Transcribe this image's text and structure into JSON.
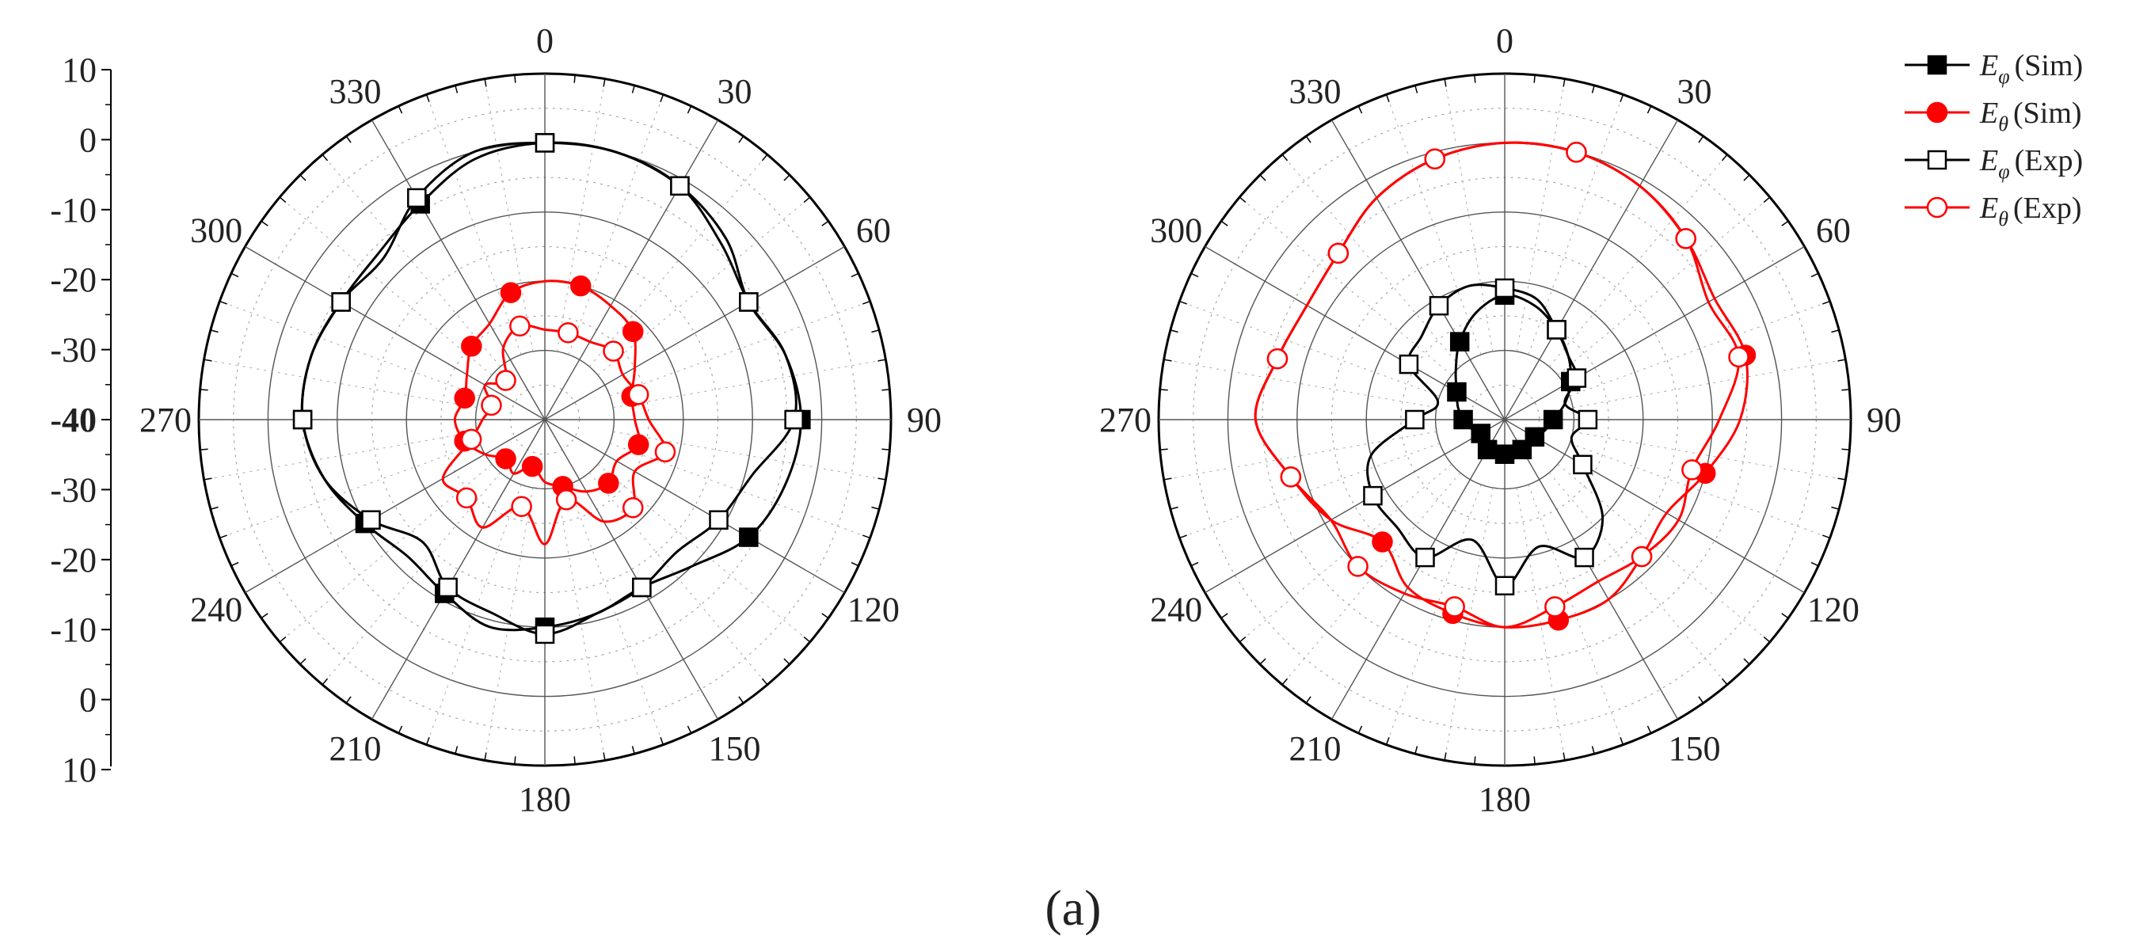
{
  "figure": {
    "panel_label": "(a)"
  },
  "chart_data": [
    {
      "type": "polar-line",
      "angle_labels": [
        "0",
        "30",
        "60",
        "90",
        "120",
        "150",
        "180",
        "210",
        "240",
        "270",
        "300",
        "330"
      ],
      "radial_tick_labels_upper": [
        "10",
        "0",
        "-10",
        "-20",
        "-30",
        "-40"
      ],
      "radial_tick_labels_lower": [
        "-30",
        "-20",
        "-10",
        "0",
        "10"
      ],
      "radial_range_db": [
        -40,
        10
      ],
      "show_radial_axis": true,
      "series": [
        {
          "name": "Eφ (Sim)",
          "color": "#000000",
          "marker": "filled-square",
          "theta": [
            0,
            15,
            30,
            45,
            60,
            75,
            90,
            105,
            120,
            135,
            150,
            165,
            180,
            195,
            210,
            225,
            240,
            255,
            270,
            285,
            300,
            315,
            330,
            345
          ],
          "r": [
            0,
            0,
            -1,
            -3,
            -6,
            -4,
            -3,
            -4,
            -6,
            -10,
            -12,
            -11,
            -10,
            -9,
            -11,
            -12,
            -10,
            -7,
            -5,
            -5,
            -6,
            -6,
            -4,
            -1
          ]
        },
        {
          "name": "Eθ (Sim)",
          "color": "#ff0000",
          "marker": "filled-circle",
          "theta": [
            0,
            15,
            30,
            45,
            60,
            75,
            90,
            105,
            120,
            135,
            150,
            165,
            180,
            195,
            210,
            225,
            240,
            255,
            270,
            285,
            300,
            315,
            330,
            345
          ],
          "r": [
            -20,
            -20,
            -21,
            -22,
            -25,
            -27,
            -27,
            -26,
            -28,
            -27,
            -28,
            -30,
            -31,
            -33,
            -31,
            -32,
            -30,
            -28,
            -27,
            -28,
            -27,
            -25,
            -24,
            -21
          ]
        },
        {
          "name": "Eφ (Exp)",
          "color": "#000000",
          "marker": "open-square",
          "theta": [
            0,
            15,
            30,
            45,
            60,
            75,
            90,
            105,
            120,
            135,
            150,
            165,
            180,
            195,
            210,
            225,
            240,
            255,
            270,
            285,
            300,
            315,
            330,
            345
          ],
          "r": [
            0,
            0,
            -1,
            -4,
            -6,
            -4,
            -4,
            -9,
            -11,
            -13,
            -12,
            -11,
            -9,
            -11,
            -12,
            -15,
            -11,
            -7,
            -5,
            -5,
            -6,
            -7,
            -3,
            0
          ]
        },
        {
          "name": "Eθ (Exp)",
          "color": "#ff0000",
          "marker": "open-circle",
          "theta": [
            0,
            15,
            30,
            45,
            60,
            75,
            90,
            105,
            120,
            135,
            150,
            165,
            180,
            195,
            210,
            225,
            240,
            255,
            270,
            285,
            300,
            315,
            330,
            345
          ],
          "r": [
            -27,
            -27,
            -27,
            -26,
            -27,
            -26,
            -25,
            -22,
            -25,
            -22,
            -23,
            -28,
            -22,
            -27,
            -22,
            -24,
            -23,
            -29,
            -31,
            -32,
            -30,
            -32,
            -28,
            -26
          ]
        }
      ]
    },
    {
      "type": "polar-line",
      "angle_labels": [
        "0",
        "30",
        "60",
        "90",
        "120",
        "150",
        "180",
        "210",
        "240",
        "270",
        "300",
        "330"
      ],
      "radial_tick_labels_upper": [],
      "radial_tick_labels_lower": [],
      "radial_range_db": [
        -40,
        10
      ],
      "show_radial_axis": false,
      "series": [
        {
          "name": "Eφ (Sim)",
          "color": "#000000",
          "marker": "filled-square",
          "theta": [
            0,
            15,
            30,
            45,
            60,
            75,
            90,
            105,
            120,
            135,
            150,
            165,
            180,
            195,
            210,
            225,
            240,
            255,
            270,
            285,
            300,
            315,
            330,
            345
          ],
          "r": [
            -22,
            -23,
            -25,
            -27,
            -29,
            -31,
            -33,
            -34,
            -35,
            -35,
            -35,
            -35,
            -35,
            -35,
            -35,
            -35,
            -36,
            -35,
            -34,
            -33,
            -32,
            -30,
            -27,
            -24
          ]
        },
        {
          "name": "Eθ (Sim)",
          "color": "#ff0000",
          "marker": "filled-circle",
          "theta": [
            0,
            15,
            30,
            45,
            60,
            75,
            90,
            105,
            120,
            135,
            150,
            165,
            180,
            195,
            210,
            225,
            240,
            255,
            270,
            285,
            300,
            315,
            330,
            345
          ],
          "r": [
            0,
            0,
            -1,
            -3,
            -5,
            -4,
            -6,
            -10,
            -13,
            -12,
            -10,
            -10,
            -10,
            -11,
            -12,
            -15,
            -11,
            -8,
            -4,
            -6,
            -7,
            -6,
            -3,
            -1
          ]
        },
        {
          "name": "Eφ (Exp)",
          "color": "#000000",
          "marker": "open-square",
          "theta": [
            0,
            15,
            30,
            45,
            60,
            75,
            90,
            105,
            120,
            135,
            150,
            165,
            180,
            195,
            210,
            225,
            240,
            255,
            270,
            285,
            300,
            315,
            330,
            345
          ],
          "r": [
            -21,
            -22,
            -25,
            -27,
            -28,
            -31,
            -28,
            -30,
            -27,
            -20,
            -17,
            -21,
            -16,
            -22,
            -17,
            -18,
            -18,
            -20,
            -27,
            -30,
            -24,
            -23,
            -21,
            -20
          ]
        },
        {
          "name": "Eθ (Exp)",
          "color": "#ff0000",
          "marker": "open-circle",
          "theta": [
            0,
            15,
            30,
            45,
            60,
            75,
            90,
            105,
            120,
            135,
            150,
            165,
            180,
            195,
            210,
            225,
            240,
            255,
            270,
            285,
            300,
            315,
            330,
            345
          ],
          "r": [
            0,
            0,
            -1,
            -3,
            -6,
            -5,
            -9,
            -12,
            -11,
            -12,
            -13,
            -12,
            -10,
            -12,
            -11,
            -10,
            -11,
            -8,
            -4,
            -6,
            -7,
            -6,
            -3,
            -1
          ]
        }
      ]
    }
  ],
  "legend": [
    {
      "symbol": "E",
      "sub": "φ",
      "suffix": "(Sim)",
      "color": "#000000",
      "marker": "filled-square"
    },
    {
      "symbol": "E",
      "sub": "θ",
      "suffix": "(Sim)",
      "color": "#ff0000",
      "marker": "filled-circle"
    },
    {
      "symbol": "E",
      "sub": "φ",
      "suffix": "(Exp)",
      "color": "#000000",
      "marker": "open-square"
    },
    {
      "symbol": "E",
      "sub": "θ",
      "suffix": "(Exp)",
      "color": "#ff0000",
      "marker": "open-circle"
    }
  ]
}
